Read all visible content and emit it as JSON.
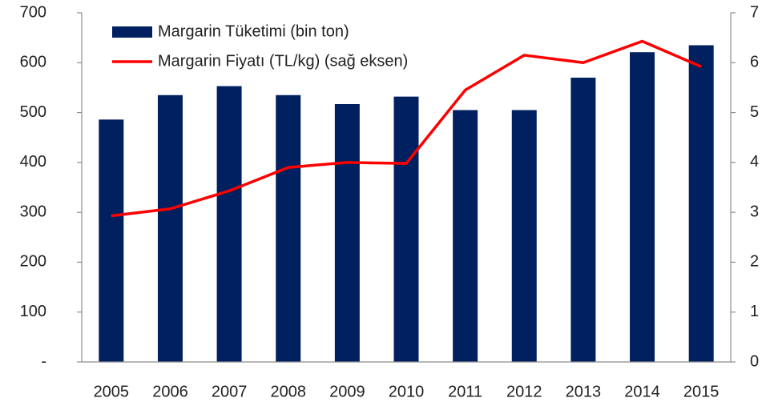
{
  "chart_data": {
    "type": "bar_line",
    "categories": [
      "2005",
      "2006",
      "2007",
      "2008",
      "2009",
      "2010",
      "2011",
      "2012",
      "2013",
      "2014",
      "2015"
    ],
    "series": [
      {
        "name": "Margarin Tüketimi (bin ton)",
        "type": "bar",
        "color": "#002060",
        "values": [
          486,
          535,
          553,
          535,
          517,
          532,
          505,
          505,
          570,
          621,
          635
        ]
      },
      {
        "name": "Margarin Fiyatı (TL/kg) (sağ eksen)",
        "type": "line",
        "axis": "y2",
        "color": "#ff0000",
        "values": [
          2.93,
          3.07,
          3.43,
          3.9,
          4.0,
          3.98,
          5.45,
          6.15,
          6.0,
          6.43,
          5.92
        ]
      }
    ],
    "ylim": [
      0,
      700
    ],
    "yticks": [
      {
        "value": 0,
        "label": "-"
      },
      100,
      200,
      300,
      400,
      500,
      600,
      700
    ],
    "y2lim": [
      0,
      7
    ],
    "y2ticks": [
      0,
      1,
      2,
      3,
      4,
      5,
      6,
      7
    ],
    "legend": "top-left"
  }
}
